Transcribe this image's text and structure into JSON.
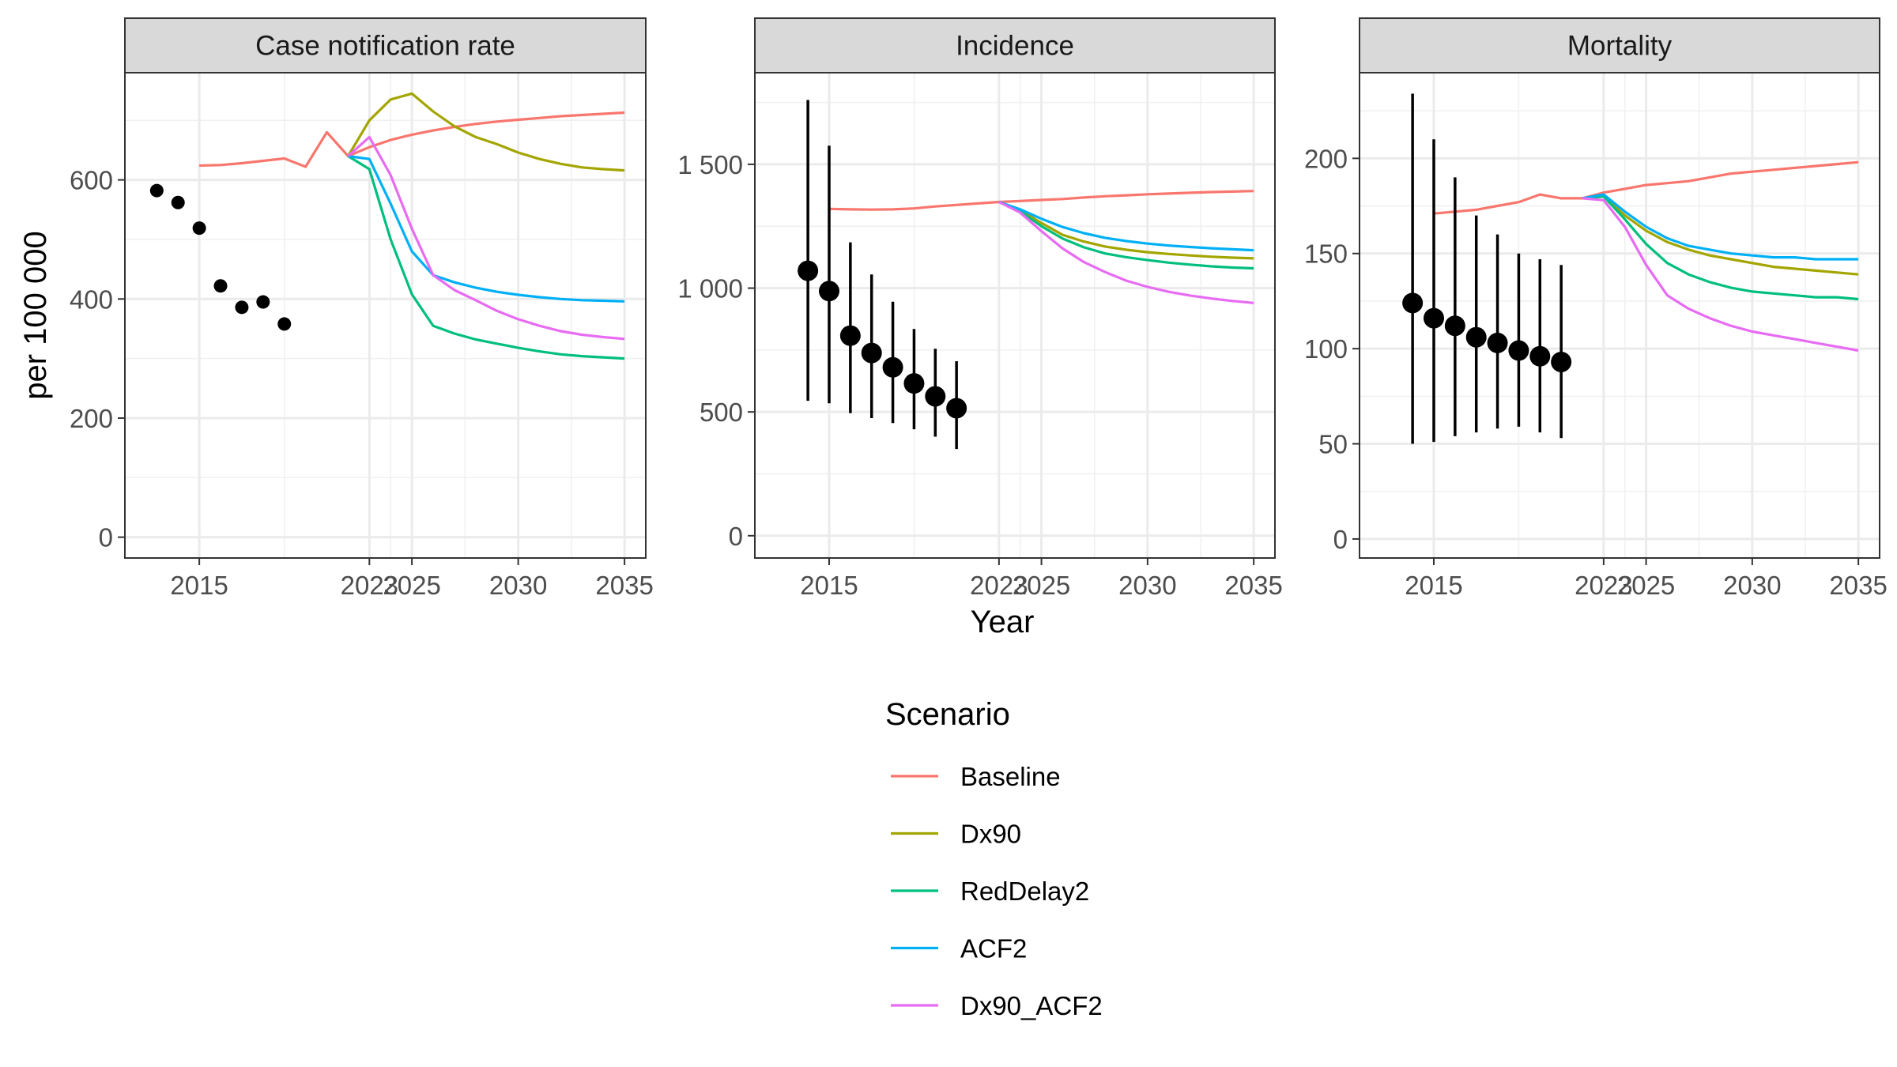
{
  "chart_data": {
    "type": "line",
    "xlabel": "Year",
    "ylabel": "per 100 000",
    "legend": {
      "title": "Scenario",
      "position": "bottom",
      "entries": [
        {
          "name": "Baseline",
          "color": "#F8766D"
        },
        {
          "name": "Dx90",
          "color": "#A3A500"
        },
        {
          "name": "RedDelay2",
          "color": "#00BF7D"
        },
        {
          "name": "ACF2",
          "color": "#00B0F6"
        },
        {
          "name": "Dx90_ACF2",
          "color": "#E76BF3"
        }
      ]
    },
    "x_ticks": [
      2015,
      2023,
      2025,
      2030,
      2035
    ],
    "x_tick_labels": [
      "2015",
      "2023",
      "2025",
      "2030",
      "2035"
    ],
    "xlim": [
      2011.5,
      2036
    ],
    "panels": [
      {
        "title": "Case notification rate",
        "ylim": [
          -35,
          780
        ],
        "y_ticks": [
          0,
          200,
          400,
          600
        ],
        "y_tick_labels": [
          "0",
          "200",
          "400",
          "600"
        ],
        "series": [
          {
            "name": "Baseline",
            "x": [
              2015,
              2016,
              2017,
              2018,
              2019,
              2020,
              2021,
              2022,
              2023,
              2024,
              2025,
              2026,
              2027,
              2028,
              2029,
              2030,
              2031,
              2032,
              2033,
              2034,
              2035
            ],
            "values": [
              624,
              625,
              628,
              632,
              636,
              622,
              680,
              640,
              655,
              667,
              676,
              683,
              689,
              694,
              698,
              701,
              704,
              707,
              709,
              711,
              713
            ]
          },
          {
            "name": "Dx90",
            "x": [
              2022,
              2023,
              2024,
              2025,
              2026,
              2027,
              2028,
              2029,
              2030,
              2031,
              2032,
              2033,
              2034,
              2035
            ],
            "values": [
              640,
              700,
              735,
              745,
              715,
              690,
              672,
              660,
              646,
              635,
              627,
              621,
              618,
              616
            ]
          },
          {
            "name": "RedDelay2",
            "x": [
              2022,
              2023,
              2024,
              2025,
              2026,
              2027,
              2028,
              2029,
              2030,
              2031,
              2032,
              2033,
              2034,
              2035
            ],
            "values": [
              640,
              618,
              500,
              408,
              355,
              342,
              332,
              325,
              318,
              312,
              307,
              304,
              302,
              300
            ]
          },
          {
            "name": "ACF2",
            "x": [
              2022,
              2023,
              2024,
              2025,
              2026,
              2027,
              2028,
              2029,
              2030,
              2031,
              2032,
              2033,
              2034,
              2035
            ],
            "values": [
              640,
              635,
              560,
              480,
              440,
              428,
              419,
              412,
              407,
              403,
              400,
              398,
              397,
              396
            ]
          },
          {
            "name": "Dx90_ACF2",
            "x": [
              2022,
              2023,
              2024,
              2025,
              2026,
              2027,
              2028,
              2029,
              2030,
              2031,
              2032,
              2033,
              2034,
              2035
            ],
            "values": [
              640,
              672,
              608,
              518,
              440,
              415,
              398,
              380,
              366,
              355,
              346,
              340,
              336,
              333
            ]
          }
        ],
        "observed": {
          "x": [
            2013,
            2014,
            2015,
            2016,
            2017,
            2018,
            2019
          ],
          "values": [
            582,
            562,
            519,
            422,
            386,
            395,
            358
          ]
        }
      },
      {
        "title": "Incidence",
        "ylim": [
          -90,
          1870
        ],
        "y_ticks": [
          0,
          500,
          1000,
          1500
        ],
        "y_tick_labels": [
          "0",
          "500",
          "1 000",
          "1 500"
        ],
        "series": [
          {
            "name": "Baseline",
            "x": [
              2015,
              2016,
              2017,
              2018,
              2019,
              2020,
              2021,
              2022,
              2023,
              2024,
              2025,
              2026,
              2027,
              2028,
              2029,
              2030,
              2031,
              2032,
              2033,
              2034,
              2035
            ],
            "values": [
              1320,
              1318,
              1317,
              1318,
              1322,
              1330,
              1336,
              1342,
              1348,
              1352,
              1356,
              1360,
              1366,
              1371,
              1375,
              1379,
              1382,
              1385,
              1388,
              1390,
              1392
            ]
          },
          {
            "name": "Dx90",
            "x": [
              2023,
              2024,
              2025,
              2026,
              2027,
              2028,
              2029,
              2030,
              2031,
              2032,
              2033,
              2034,
              2035
            ],
            "values": [
              1348,
              1315,
              1263,
              1215,
              1188,
              1168,
              1155,
              1145,
              1138,
              1132,
              1127,
              1123,
              1120
            ]
          },
          {
            "name": "RedDelay2",
            "x": [
              2023,
              2024,
              2025,
              2026,
              2027,
              2028,
              2029,
              2030,
              2031,
              2032,
              2033,
              2034,
              2035
            ],
            "values": [
              1348,
              1310,
              1250,
              1200,
              1165,
              1140,
              1125,
              1113,
              1103,
              1095,
              1088,
              1083,
              1080
            ]
          },
          {
            "name": "ACF2",
            "x": [
              2023,
              2024,
              2025,
              2026,
              2027,
              2028,
              2029,
              2030,
              2031,
              2032,
              2033,
              2034,
              2035
            ],
            "values": [
              1348,
              1318,
              1280,
              1247,
              1222,
              1203,
              1190,
              1180,
              1172,
              1166,
              1161,
              1157,
              1153
            ]
          },
          {
            "name": "Dx90_ACF2",
            "x": [
              2023,
              2024,
              2025,
              2026,
              2027,
              2028,
              2029,
              2030,
              2031,
              2032,
              2033,
              2034,
              2035
            ],
            "values": [
              1348,
              1305,
              1230,
              1160,
              1105,
              1065,
              1030,
              1005,
              985,
              970,
              958,
              948,
              940
            ]
          }
        ],
        "observed": {
          "x": [
            2014,
            2015,
            2016,
            2017,
            2018,
            2019,
            2020,
            2021
          ],
          "values": [
            1070,
            988,
            808,
            738,
            680,
            615,
            563,
            515
          ],
          "lower": [
            545,
            535,
            495,
            475,
            455,
            430,
            400,
            350
          ],
          "upper": [
            1760,
            1575,
            1185,
            1055,
            945,
            835,
            755,
            705
          ]
        }
      },
      {
        "title": "Mortality",
        "ylim": [
          -10,
          245
        ],
        "y_ticks": [
          0,
          50,
          100,
          150,
          200
        ],
        "y_tick_labels": [
          "0",
          "50",
          "100",
          "150",
          "200"
        ],
        "series": [
          {
            "name": "Baseline",
            "x": [
              2015,
              2016,
              2017,
              2018,
              2019,
              2020,
              2021,
              2022,
              2023,
              2024,
              2025,
              2026,
              2027,
              2028,
              2029,
              2030,
              2031,
              2032,
              2033,
              2034,
              2035
            ],
            "values": [
              171,
              172,
              173,
              175,
              177,
              181,
              179,
              179,
              182,
              184,
              186,
              187,
              188,
              190,
              192,
              193,
              194,
              195,
              196,
              197,
              198
            ]
          },
          {
            "name": "Dx90",
            "x": [
              2022,
              2023,
              2024,
              2025,
              2026,
              2027,
              2028,
              2029,
              2030,
              2031,
              2032,
              2033,
              2034,
              2035
            ],
            "values": [
              179,
              180,
              170,
              162,
              156,
              152,
              149,
              147,
              145,
              143,
              142,
              141,
              140,
              139
            ]
          },
          {
            "name": "RedDelay2",
            "x": [
              2022,
              2023,
              2024,
              2025,
              2026,
              2027,
              2028,
              2029,
              2030,
              2031,
              2032,
              2033,
              2034,
              2035
            ],
            "values": [
              179,
              180,
              168,
              155,
              145,
              139,
              135,
              132,
              130,
              129,
              128,
              127,
              127,
              126
            ]
          },
          {
            "name": "ACF2",
            "x": [
              2022,
              2023,
              2024,
              2025,
              2026,
              2027,
              2028,
              2029,
              2030,
              2031,
              2032,
              2033,
              2034,
              2035
            ],
            "values": [
              179,
              181,
              172,
              164,
              158,
              154,
              152,
              150,
              149,
              148,
              148,
              147,
              147,
              147
            ]
          },
          {
            "name": "Dx90_ACF2",
            "x": [
              2022,
              2023,
              2024,
              2025,
              2026,
              2027,
              2028,
              2029,
              2030,
              2031,
              2032,
              2033,
              2034,
              2035
            ],
            "values": [
              179,
              178,
              164,
              144,
              128,
              121,
              116,
              112,
              109,
              107,
              105,
              103,
              101,
              99
            ]
          }
        ],
        "observed": {
          "x": [
            2014,
            2015,
            2016,
            2017,
            2018,
            2019,
            2020,
            2021
          ],
          "values": [
            124,
            116,
            112,
            106,
            103,
            99,
            96,
            93
          ],
          "lower": [
            50,
            51,
            54,
            56,
            58,
            59,
            56,
            53
          ],
          "upper": [
            234,
            210,
            190,
            170,
            160,
            150,
            147,
            144
          ]
        }
      }
    ]
  }
}
